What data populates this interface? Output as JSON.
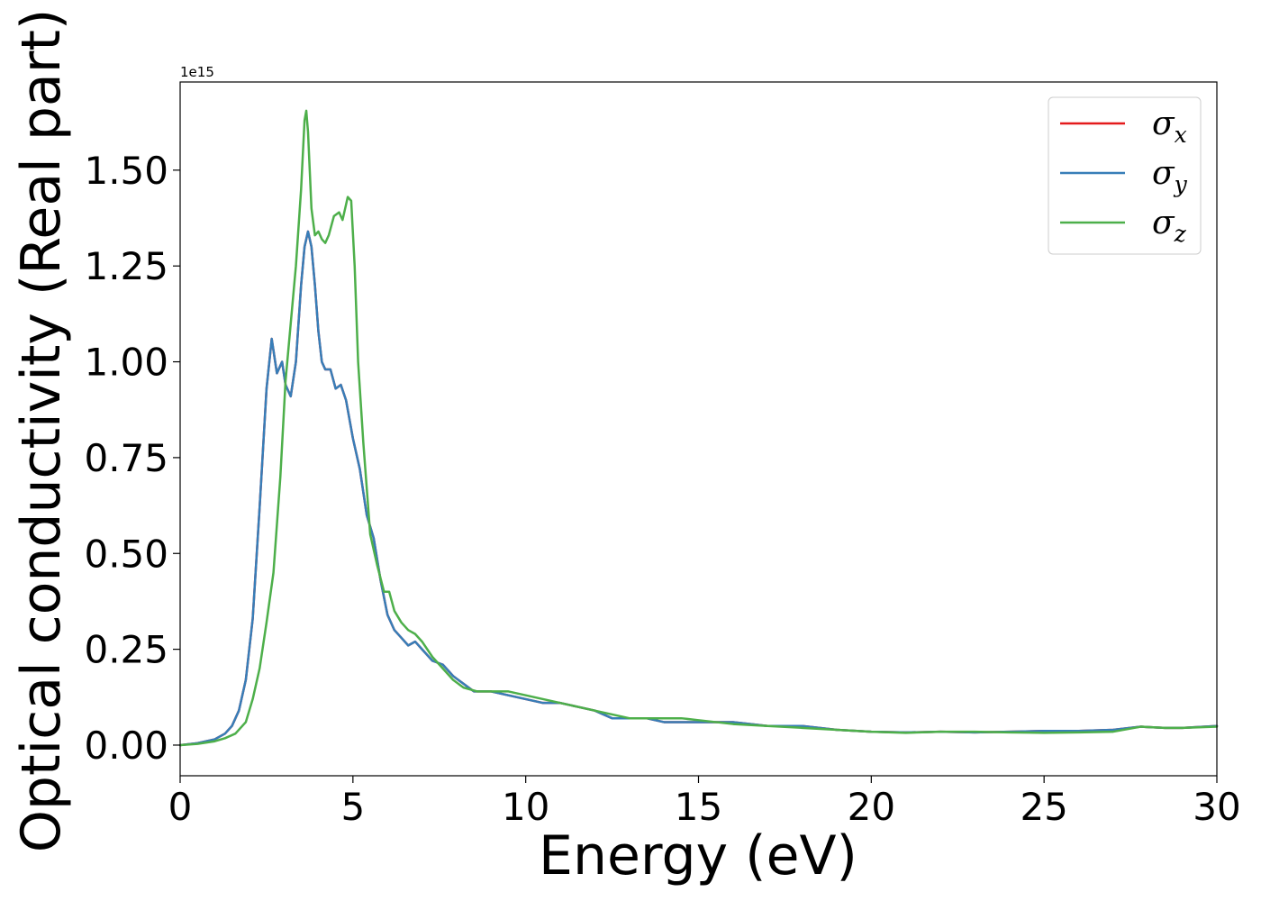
{
  "chart_data": {
    "type": "line",
    "xlabel": "Energy (eV)",
    "ylabel": "Optical conductivity (Real part)",
    "y_scale_label": "1e15",
    "xlim": [
      0,
      30
    ],
    "ylim": [
      -0.08,
      1.73
    ],
    "xticks": [
      0,
      5,
      10,
      15,
      20,
      25,
      30
    ],
    "yticks": [
      0.0,
      0.25,
      0.5,
      0.75,
      1.0,
      1.25,
      1.5
    ],
    "xtick_labels": [
      "0",
      "5",
      "10",
      "15",
      "20",
      "25",
      "30"
    ],
    "ytick_labels": [
      "0.00",
      "0.25",
      "0.50",
      "0.75",
      "1.00",
      "1.25",
      "1.50"
    ],
    "grid": false,
    "legend": {
      "placement": "top-right"
    },
    "series": [
      {
        "name": "σx",
        "sym": "σ",
        "sub": "x",
        "color": "#e41a1c",
        "x": [
          0,
          0.5,
          1.0,
          1.3,
          1.5,
          1.7,
          1.9,
          2.1,
          2.3,
          2.5,
          2.65,
          2.8,
          2.95,
          3.05,
          3.2,
          3.35,
          3.5,
          3.6,
          3.7,
          3.8,
          3.9,
          4.0,
          4.1,
          4.2,
          4.35,
          4.5,
          4.65,
          4.8,
          5.0,
          5.2,
          5.4,
          5.6,
          5.8,
          6.0,
          6.2,
          6.4,
          6.6,
          6.8,
          7.0,
          7.3,
          7.6,
          7.9,
          8.2,
          8.5,
          9.0,
          9.5,
          10.0,
          10.5,
          11.0,
          11.5,
          12.0,
          12.5,
          13.0,
          13.5,
          14.0,
          15.0,
          16.0,
          17.0,
          18.0,
          18.5,
          19.0,
          20.0,
          21.0,
          22.0,
          23.0,
          24.0,
          25.0,
          26.0,
          27.0,
          27.8,
          28.5,
          29.0,
          30.0
        ],
        "y": [
          0.0,
          0.005,
          0.015,
          0.03,
          0.05,
          0.09,
          0.17,
          0.33,
          0.62,
          0.93,
          1.06,
          0.97,
          1.0,
          0.94,
          0.91,
          1.0,
          1.2,
          1.3,
          1.34,
          1.3,
          1.2,
          1.08,
          1.0,
          0.98,
          0.98,
          0.93,
          0.94,
          0.9,
          0.8,
          0.72,
          0.6,
          0.54,
          0.43,
          0.34,
          0.3,
          0.28,
          0.26,
          0.27,
          0.25,
          0.22,
          0.21,
          0.18,
          0.16,
          0.14,
          0.14,
          0.13,
          0.12,
          0.11,
          0.11,
          0.1,
          0.09,
          0.07,
          0.07,
          0.07,
          0.06,
          0.06,
          0.06,
          0.05,
          0.05,
          0.045,
          0.04,
          0.035,
          0.033,
          0.035,
          0.033,
          0.035,
          0.037,
          0.037,
          0.04,
          0.048,
          0.045,
          0.045,
          0.05
        ]
      },
      {
        "name": "σy",
        "sym": "σ",
        "sub": "y",
        "color": "#377eb8",
        "x": [
          0,
          0.5,
          1.0,
          1.3,
          1.5,
          1.7,
          1.9,
          2.1,
          2.3,
          2.5,
          2.65,
          2.8,
          2.95,
          3.05,
          3.2,
          3.35,
          3.5,
          3.6,
          3.7,
          3.8,
          3.9,
          4.0,
          4.1,
          4.2,
          4.35,
          4.5,
          4.65,
          4.8,
          5.0,
          5.2,
          5.4,
          5.6,
          5.8,
          6.0,
          6.2,
          6.4,
          6.6,
          6.8,
          7.0,
          7.3,
          7.6,
          7.9,
          8.2,
          8.5,
          9.0,
          9.5,
          10.0,
          10.5,
          11.0,
          11.5,
          12.0,
          12.5,
          13.0,
          13.5,
          14.0,
          15.0,
          16.0,
          17.0,
          18.0,
          18.5,
          19.0,
          20.0,
          21.0,
          22.0,
          23.0,
          24.0,
          25.0,
          26.0,
          27.0,
          27.8,
          28.5,
          29.0,
          30.0
        ],
        "y": [
          0.0,
          0.005,
          0.015,
          0.03,
          0.05,
          0.09,
          0.17,
          0.33,
          0.62,
          0.93,
          1.06,
          0.97,
          1.0,
          0.94,
          0.91,
          1.0,
          1.2,
          1.3,
          1.34,
          1.3,
          1.2,
          1.08,
          1.0,
          0.98,
          0.98,
          0.93,
          0.94,
          0.9,
          0.8,
          0.72,
          0.6,
          0.54,
          0.43,
          0.34,
          0.3,
          0.28,
          0.26,
          0.27,
          0.25,
          0.22,
          0.21,
          0.18,
          0.16,
          0.14,
          0.14,
          0.13,
          0.12,
          0.11,
          0.11,
          0.1,
          0.09,
          0.07,
          0.07,
          0.07,
          0.06,
          0.06,
          0.06,
          0.05,
          0.05,
          0.045,
          0.04,
          0.035,
          0.033,
          0.035,
          0.033,
          0.035,
          0.037,
          0.037,
          0.04,
          0.048,
          0.045,
          0.045,
          0.05
        ]
      },
      {
        "name": "σz",
        "sym": "σ",
        "sub": "z",
        "color": "#4daf4a",
        "x": [
          0,
          0.5,
          1.0,
          1.3,
          1.6,
          1.9,
          2.1,
          2.3,
          2.5,
          2.7,
          2.9,
          3.05,
          3.2,
          3.35,
          3.5,
          3.6,
          3.65,
          3.7,
          3.8,
          3.9,
          4.0,
          4.1,
          4.2,
          4.3,
          4.45,
          4.6,
          4.7,
          4.85,
          4.95,
          5.05,
          5.15,
          5.3,
          5.5,
          5.7,
          5.9,
          6.05,
          6.2,
          6.4,
          6.6,
          6.8,
          7.0,
          7.3,
          7.6,
          7.9,
          8.2,
          8.6,
          9.0,
          9.5,
          10.0,
          10.5,
          11.0,
          11.5,
          12.0,
          12.5,
          13.0,
          13.5,
          14.0,
          14.5,
          15.0,
          15.5,
          16.0,
          17.0,
          18.0,
          19.0,
          20.0,
          21.0,
          22.0,
          23.0,
          24.0,
          25.0,
          26.0,
          27.0,
          27.8,
          28.5,
          29.0,
          30.0
        ],
        "y": [
          0.0,
          0.003,
          0.01,
          0.018,
          0.03,
          0.06,
          0.12,
          0.2,
          0.32,
          0.45,
          0.7,
          0.95,
          1.1,
          1.25,
          1.45,
          1.63,
          1.655,
          1.6,
          1.4,
          1.33,
          1.34,
          1.32,
          1.31,
          1.33,
          1.38,
          1.39,
          1.37,
          1.43,
          1.42,
          1.25,
          1.0,
          0.79,
          0.55,
          0.47,
          0.4,
          0.4,
          0.35,
          0.32,
          0.3,
          0.29,
          0.27,
          0.23,
          0.2,
          0.17,
          0.15,
          0.14,
          0.14,
          0.14,
          0.13,
          0.12,
          0.11,
          0.1,
          0.09,
          0.08,
          0.07,
          0.07,
          0.07,
          0.07,
          0.065,
          0.06,
          0.055,
          0.05,
          0.045,
          0.04,
          0.035,
          0.032,
          0.035,
          0.035,
          0.033,
          0.032,
          0.033,
          0.035,
          0.048,
          0.045,
          0.045,
          0.048
        ]
      }
    ]
  }
}
